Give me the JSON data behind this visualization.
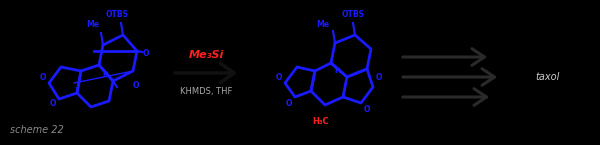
{
  "background_color": "#000000",
  "scheme_label": "scheme 22",
  "scheme_label_color": "#888888",
  "scheme_label_fontsize": 7,
  "reagent_line1": "Me₃Si",
  "reagent_line2": "KHMDS, THF",
  "reagent_color": "#ff2020",
  "reagent2_color": "#aaaaaa",
  "reagent_fontsize": 8,
  "taxol_label": "taxol",
  "taxol_color": "#cccccc",
  "taxol_fontsize": 7,
  "main_arrow_color": "#111111",
  "mol_color": "#1a1aff",
  "red_label_color": "#ff2020",
  "arrow3_color": "#333333",
  "figsize": [
    6.0,
    1.45
  ],
  "dpi": 100
}
